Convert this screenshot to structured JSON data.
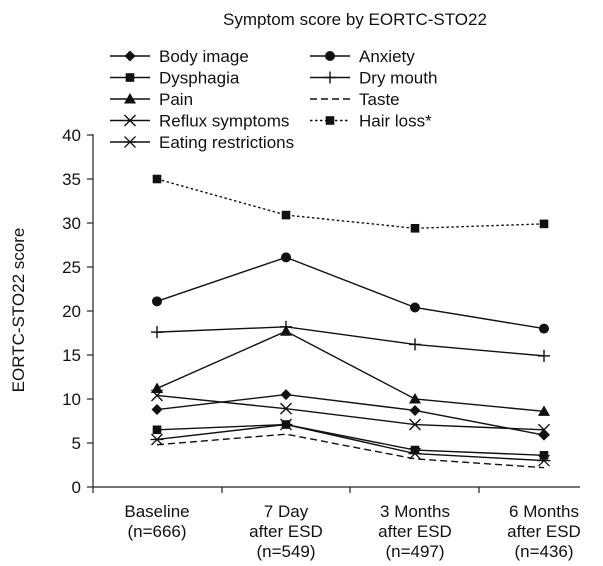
{
  "chart_data": {
    "type": "line",
    "title": "Symptom score by EORTC-STO22",
    "ylabel": "EORTC-STO22 score",
    "xlabel": "",
    "ylim": [
      0,
      40
    ],
    "yticks": [
      0,
      5,
      10,
      15,
      20,
      25,
      30,
      35,
      40
    ],
    "grid": false,
    "legend_position": "top-left",
    "categories": [
      [
        "Baseline",
        "(n=666)"
      ],
      [
        "7 Day",
        "after ESD",
        "(n=549)"
      ],
      [
        "3 Months",
        "after ESD",
        "(n=497)"
      ],
      [
        "6 Months",
        "after ESD",
        "(n=436)"
      ]
    ],
    "series": [
      {
        "name": "Body image",
        "marker": "diamond",
        "line": "solid",
        "values": [
          8.8,
          10.5,
          8.7,
          5.9
        ]
      },
      {
        "name": "Dysphagia",
        "marker": "square",
        "line": "solid",
        "values": [
          6.5,
          7.1,
          4.2,
          3.6
        ]
      },
      {
        "name": "Pain",
        "marker": "triangle",
        "line": "solid",
        "values": [
          11.2,
          17.7,
          10.0,
          8.6
        ]
      },
      {
        "name": "Reflux symptoms",
        "marker": "x",
        "line": "solid",
        "values": [
          10.4,
          8.9,
          7.1,
          6.5
        ]
      },
      {
        "name": "Eating restrictions",
        "marker": "asterisk",
        "line": "solid",
        "values": [
          5.4,
          7.1,
          3.8,
          3.0
        ]
      },
      {
        "name": "Anxiety",
        "marker": "circle",
        "line": "solid",
        "values": [
          21.1,
          26.1,
          20.4,
          18.0
        ]
      },
      {
        "name": "Dry mouth",
        "marker": "plus",
        "line": "solid",
        "values": [
          17.6,
          18.2,
          16.2,
          14.9
        ]
      },
      {
        "name": "Taste",
        "marker": "none",
        "line": "dashed",
        "values": [
          4.8,
          6.0,
          3.2,
          2.2
        ]
      },
      {
        "name": "Hair loss*",
        "marker": "square",
        "line": "dotted",
        "values": [
          35.0,
          30.9,
          29.4,
          29.9
        ]
      }
    ]
  }
}
